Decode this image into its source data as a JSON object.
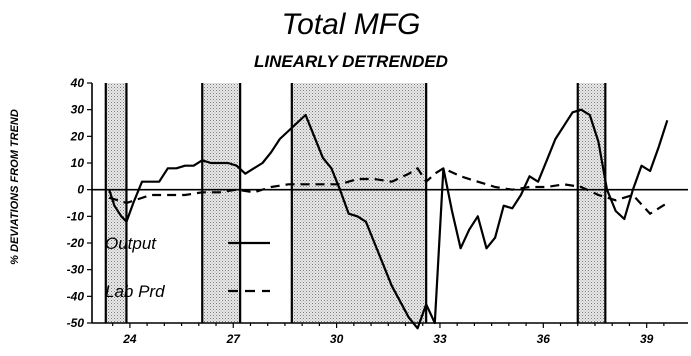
{
  "chart_data": {
    "type": "line",
    "title": "Total MFG",
    "subtitle": "LINEARLY DETRENDED",
    "ylabel": "% DEVIATIONS FROM TREND",
    "xlabel": "",
    "xlim": [
      22.9,
      40.2
    ],
    "ylim": [
      -50,
      40
    ],
    "yticks": [
      40,
      30,
      20,
      10,
      0,
      -10,
      -20,
      -30,
      -40,
      -50
    ],
    "xticks": [
      24,
      27,
      30,
      33,
      36,
      39
    ],
    "grid": false,
    "legend_position": "bottom-left",
    "shaded_periods": [
      [
        23.3,
        23.9
      ],
      [
        26.1,
        27.2
      ],
      [
        28.7,
        32.6
      ],
      [
        37.0,
        37.8
      ]
    ],
    "series": [
      {
        "name": "Output",
        "style": "solid",
        "x": [
          23.4,
          23.55,
          23.75,
          23.9,
          24.1,
          24.35,
          24.6,
          24.85,
          25.1,
          25.35,
          25.6,
          25.85,
          26.1,
          26.35,
          26.6,
          26.85,
          27.1,
          27.35,
          27.6,
          27.85,
          28.1,
          28.35,
          28.6,
          28.85,
          29.1,
          29.35,
          29.6,
          29.85,
          30.1,
          30.35,
          30.6,
          30.85,
          31.1,
          31.35,
          31.6,
          31.85,
          32.1,
          32.35,
          32.6,
          32.85,
          33.1,
          33.35,
          33.6,
          33.85,
          34.1,
          34.35,
          34.6,
          34.85,
          35.1,
          35.35,
          35.6,
          35.85,
          36.1,
          36.35,
          36.6,
          36.85,
          37.1,
          37.35,
          37.6,
          37.85,
          38.1,
          38.35,
          38.6,
          38.85,
          39.1,
          39.35,
          39.6
        ],
        "y": [
          0,
          -6,
          -10,
          -12,
          -5,
          3,
          3,
          3,
          8,
          8,
          9,
          9,
          11,
          10,
          10,
          10,
          9,
          6,
          8,
          10,
          14,
          19,
          22,
          25,
          28,
          20,
          12,
          8,
          0,
          -9,
          -10,
          -12,
          -20,
          -28,
          -36,
          -42,
          -48,
          -52,
          -43,
          -50,
          8,
          -8,
          -22,
          -15,
          -10,
          -22,
          -18,
          -6,
          -7,
          -2,
          5,
          3,
          11,
          19,
          24,
          29,
          30,
          28,
          18,
          0,
          -8,
          -11,
          0,
          9,
          7,
          16,
          26
        ]
      },
      {
        "name": "Lab Prd",
        "style": "dashed",
        "x": [
          23.4,
          23.9,
          24.6,
          25.1,
          25.6,
          26.1,
          26.6,
          27.1,
          27.6,
          28.1,
          28.6,
          29.1,
          29.6,
          30.1,
          30.6,
          31.1,
          31.6,
          32.1,
          32.35,
          32.6,
          32.85,
          33.1,
          33.6,
          34.1,
          34.6,
          35.1,
          35.6,
          36.1,
          36.6,
          37.1,
          37.6,
          38.1,
          38.6,
          39.1,
          39.6
        ],
        "y": [
          -3,
          -5,
          -2,
          -2,
          -2,
          -1,
          -1,
          0,
          -1,
          1,
          2,
          2,
          2,
          2,
          4,
          4,
          3,
          6,
          8,
          3,
          6,
          8,
          5,
          3,
          1,
          0,
          1,
          1,
          2,
          1,
          -2,
          -4,
          -2,
          -9,
          -5
        ]
      }
    ]
  }
}
